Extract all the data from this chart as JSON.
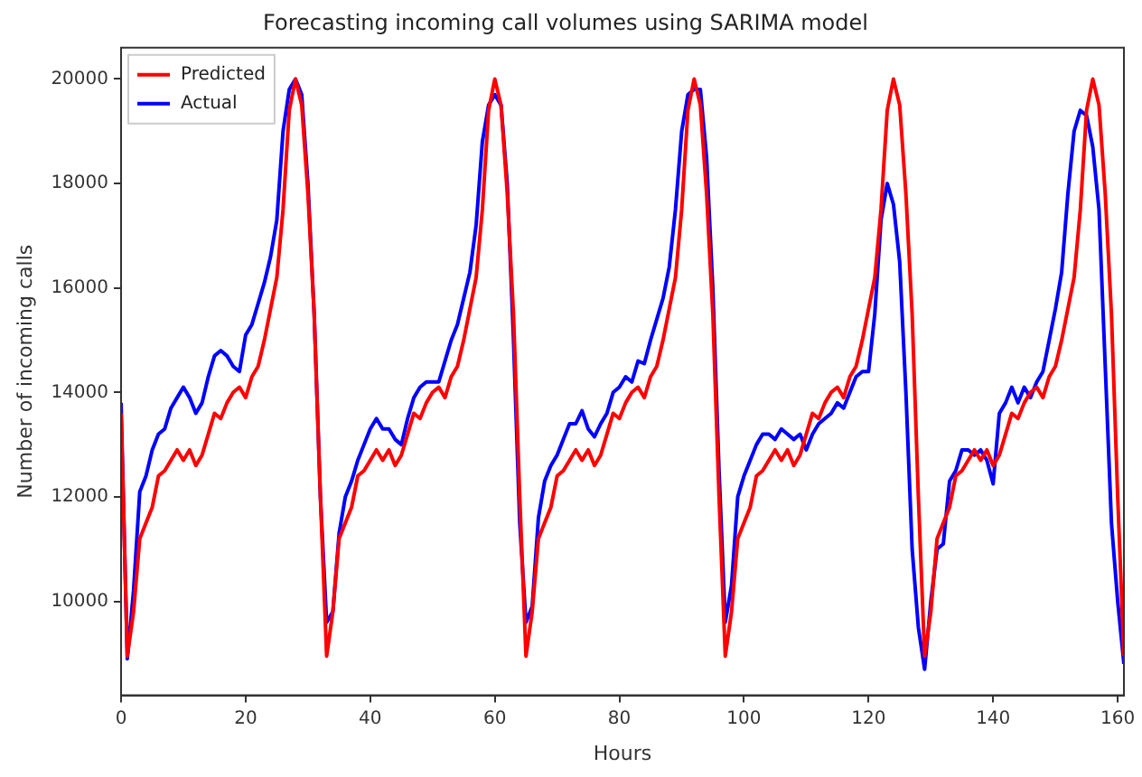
{
  "chart_data": {
    "type": "line",
    "title": "Forecasting incoming call volumes using SARIMA model",
    "xlabel": "Hours",
    "ylabel": "Number of incoming calls",
    "x": [
      0,
      1,
      2,
      3,
      4,
      5,
      6,
      7,
      8,
      9,
      10,
      11,
      12,
      13,
      14,
      15,
      16,
      17,
      18,
      19,
      20,
      21,
      22,
      23,
      24,
      25,
      26,
      27,
      28,
      29,
      30,
      31,
      32,
      33,
      34,
      35,
      36,
      37,
      38,
      39,
      40,
      41,
      42,
      43,
      44,
      45,
      46,
      47,
      48,
      49,
      50,
      51,
      52,
      53,
      54,
      55,
      56,
      57,
      58,
      59,
      60,
      61,
      62,
      63,
      64,
      65,
      66,
      67,
      68,
      69,
      70,
      71,
      72,
      73,
      74,
      75,
      76,
      77,
      78,
      79,
      80,
      81,
      82,
      83,
      84,
      85,
      86,
      87,
      88,
      89,
      90,
      91,
      92,
      93,
      94,
      95,
      96,
      97,
      98,
      99,
      100,
      101,
      102,
      103,
      104,
      105,
      106,
      107,
      108,
      109,
      110,
      111,
      112,
      113,
      114,
      115,
      116,
      117,
      118,
      119,
      120,
      121,
      122,
      123,
      124,
      125,
      126,
      127,
      128,
      129,
      130,
      131,
      132,
      133,
      134,
      135,
      136,
      137,
      138,
      139,
      140,
      141,
      142,
      143,
      144,
      145,
      146,
      147,
      148,
      149,
      150,
      151,
      152,
      153,
      154,
      155,
      156,
      157,
      158,
      159,
      160,
      161
    ],
    "series": [
      {
        "name": "Predicted",
        "color": "#ff0000",
        "values": [
          13600,
          8950,
          9800,
          11200,
          11500,
          11800,
          12400,
          12500,
          12700,
          12900,
          12700,
          12900,
          12600,
          12800,
          13200,
          13600,
          13500,
          13800,
          14000,
          14100,
          13900,
          14300,
          14500,
          15000,
          15600,
          16200,
          17500,
          19400,
          20000,
          19500,
          17800,
          15500,
          12000,
          8950,
          9800,
          11200,
          11500,
          11800,
          12400,
          12500,
          12700,
          12900,
          12700,
          12900,
          12600,
          12800,
          13200,
          13600,
          13500,
          13800,
          14000,
          14100,
          13900,
          14300,
          14500,
          15000,
          15600,
          16200,
          17500,
          19400,
          20000,
          19500,
          17800,
          15500,
          12000,
          8950,
          9800,
          11200,
          11500,
          11800,
          12400,
          12500,
          12700,
          12900,
          12700,
          12900,
          12600,
          12800,
          13200,
          13600,
          13500,
          13800,
          14000,
          14100,
          13900,
          14300,
          14500,
          15000,
          15600,
          16200,
          17500,
          19400,
          20000,
          19500,
          17800,
          15500,
          12000,
          8950,
          9800,
          11200,
          11500,
          11800,
          12400,
          12500,
          12700,
          12900,
          12700,
          12900,
          12600,
          12800,
          13200,
          13600,
          13500,
          13800,
          14000,
          14100,
          13900,
          14300,
          14500,
          15000,
          15600,
          16200,
          17500,
          19400,
          20000,
          19500,
          17800,
          15500,
          12000,
          8950,
          9800,
          11200,
          11500,
          11800,
          12400,
          12500,
          12700,
          12900,
          12700,
          12900,
          12600,
          12800,
          13200,
          13600,
          13500,
          13800,
          14000,
          14100,
          13900,
          14300,
          14500,
          15000,
          15600,
          16200,
          17500,
          19400,
          20000,
          19500,
          17800,
          15500,
          12000,
          8950
        ]
      },
      {
        "name": "Actual",
        "color": "#0000ff",
        "values": [
          13800,
          8900,
          10200,
          12100,
          12400,
          12900,
          13200,
          13300,
          13700,
          13900,
          14100,
          13900,
          13600,
          13800,
          14300,
          14700,
          14800,
          14700,
          14500,
          14400,
          15100,
          15300,
          15700,
          16100,
          16600,
          17300,
          19000,
          19800,
          20000,
          19700,
          18000,
          15500,
          12000,
          9600,
          9800,
          11300,
          12000,
          12300,
          12700,
          13000,
          13300,
          13500,
          13300,
          13300,
          13100,
          13000,
          13500,
          13900,
          14100,
          14200,
          14200,
          14200,
          14600,
          15000,
          15300,
          15800,
          16300,
          17200,
          18800,
          19500,
          19700,
          19500,
          18000,
          15000,
          11500,
          9600,
          9900,
          11600,
          12300,
          12600,
          12800,
          13100,
          13400,
          13400,
          13650,
          13300,
          13150,
          13400,
          13600,
          14000,
          14100,
          14300,
          14200,
          14600,
          14550,
          15000,
          15400,
          15800,
          16400,
          17500,
          19000,
          19700,
          19800,
          19800,
          18500,
          16000,
          12500,
          9600,
          10300,
          12000,
          12400,
          12700,
          13000,
          13200,
          13200,
          13100,
          13300,
          13200,
          13100,
          13200,
          12900,
          13200,
          13400,
          13500,
          13600,
          13800,
          13700,
          14000,
          14300,
          14400,
          14400,
          15500,
          17300,
          18000,
          17600,
          16500,
          14000,
          11000,
          9500,
          8700,
          10000,
          11000,
          11100,
          12300,
          12500,
          12900,
          12900,
          12800,
          12900,
          12700,
          12250,
          13600,
          13800,
          14100,
          13800,
          14100,
          13900,
          14200,
          14400,
          15000,
          15600,
          16300,
          17800,
          19000,
          19400,
          19300,
          18700,
          17500,
          14500,
          11500,
          10000,
          8800
        ]
      }
    ],
    "xlim": [
      0,
      161
    ],
    "xticks": [
      0,
      20,
      40,
      60,
      80,
      100,
      120,
      140,
      160
    ],
    "ylim": [
      8200,
      20600
    ],
    "yticks": [
      10000,
      12000,
      14000,
      16000,
      18000,
      20000
    ],
    "grid": false,
    "legend": "top left",
    "marker": "none",
    "line_style": "solid"
  }
}
